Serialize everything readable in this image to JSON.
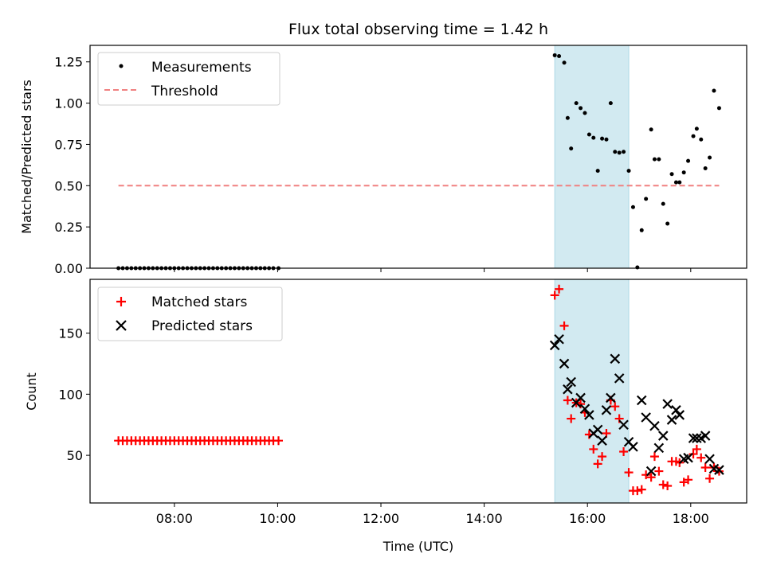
{
  "chart_data": [
    {
      "type": "scatter",
      "title": "Flux total observing time = 1.42 h",
      "xlabel": "",
      "ylabel": "Matched/Predicted stars",
      "xlim": [
        "06:22",
        "19:05"
      ],
      "ylim": [
        0,
        1.35
      ],
      "y_ticks": [
        "0.00",
        "0.25",
        "0.50",
        "0.75",
        "1.00",
        "1.25"
      ],
      "x_ticks": [
        "08:00",
        "10:00",
        "12:00",
        "14:00",
        "16:00",
        "18:00"
      ],
      "shaded_span": [
        "15:22",
        "16:48"
      ],
      "shaded_color": "#add8e6",
      "legend_position": "upper left",
      "legend": [
        "Measurements",
        "Threshold"
      ],
      "threshold": {
        "value": 0.5,
        "x_start": "06:55",
        "x_end": "18:33",
        "color": "#f08080"
      },
      "series": [
        {
          "name": "Measurements",
          "color": "#000000",
          "points": [
            [
              "06:55",
              0
            ],
            [
              "07:00",
              0
            ],
            [
              "07:05",
              0
            ],
            [
              "07:10",
              0
            ],
            [
              "07:15",
              0
            ],
            [
              "07:20",
              0
            ],
            [
              "07:25",
              0
            ],
            [
              "07:30",
              0
            ],
            [
              "07:35",
              0
            ],
            [
              "07:40",
              0
            ],
            [
              "07:45",
              0
            ],
            [
              "07:50",
              0
            ],
            [
              "07:55",
              0
            ],
            [
              "08:00",
              0
            ],
            [
              "08:05",
              0
            ],
            [
              "08:10",
              0
            ],
            [
              "08:15",
              0
            ],
            [
              "08:20",
              0
            ],
            [
              "08:25",
              0
            ],
            [
              "08:30",
              0
            ],
            [
              "08:35",
              0
            ],
            [
              "08:40",
              0
            ],
            [
              "08:45",
              0
            ],
            [
              "08:50",
              0
            ],
            [
              "08:55",
              0
            ],
            [
              "09:00",
              0
            ],
            [
              "09:05",
              0
            ],
            [
              "09:10",
              0
            ],
            [
              "09:15",
              0
            ],
            [
              "09:20",
              0
            ],
            [
              "09:25",
              0
            ],
            [
              "09:30",
              0
            ],
            [
              "09:35",
              0
            ],
            [
              "09:40",
              0
            ],
            [
              "09:45",
              0
            ],
            [
              "09:50",
              0
            ],
            [
              "09:55",
              0
            ],
            [
              "10:01",
              0
            ],
            [
              "15:22",
              1.29
            ],
            [
              "15:27",
              1.285
            ],
            [
              "15:33",
              1.245
            ],
            [
              "15:37",
              0.91
            ],
            [
              "15:41",
              0.725
            ],
            [
              "15:47",
              1.0
            ],
            [
              "15:52",
              0.97
            ],
            [
              "15:57",
              0.94
            ],
            [
              "16:02",
              0.81
            ],
            [
              "16:07",
              0.79
            ],
            [
              "16:12",
              0.59
            ],
            [
              "16:17",
              0.785
            ],
            [
              "16:22",
              0.78
            ],
            [
              "16:27",
              1.0
            ],
            [
              "16:32",
              0.705
            ],
            [
              "16:37",
              0.7
            ],
            [
              "16:42",
              0.705
            ],
            [
              "16:48",
              0.59
            ],
            [
              "16:53",
              0.37
            ],
            [
              "16:58",
              0.005
            ],
            [
              "17:03",
              0.23
            ],
            [
              "17:08",
              0.42
            ],
            [
              "17:14",
              0.84
            ],
            [
              "17:18",
              0.66
            ],
            [
              "17:23",
              0.66
            ],
            [
              "17:28",
              0.39
            ],
            [
              "17:33",
              0.27
            ],
            [
              "17:38",
              0.57
            ],
            [
              "17:43",
              0.52
            ],
            [
              "17:47",
              0.52
            ],
            [
              "17:52",
              0.58
            ],
            [
              "17:57",
              0.65
            ],
            [
              "18:03",
              0.8
            ],
            [
              "18:07",
              0.845
            ],
            [
              "18:12",
              0.78
            ],
            [
              "18:17",
              0.605
            ],
            [
              "18:22",
              0.67
            ],
            [
              "18:27",
              1.075
            ],
            [
              "18:33",
              0.97
            ]
          ]
        }
      ]
    },
    {
      "type": "scatter",
      "title": "",
      "xlabel": "Time (UTC)",
      "ylabel": "Count",
      "xlim": [
        "06:22",
        "19:05"
      ],
      "ylim": [
        11,
        194
      ],
      "y_ticks": [
        "50",
        "100",
        "150"
      ],
      "x_ticks": [
        "08:00",
        "10:00",
        "12:00",
        "14:00",
        "16:00",
        "18:00"
      ],
      "shaded_span": [
        "15:22",
        "16:48"
      ],
      "shaded_color": "#add8e6",
      "legend_position": "upper left",
      "legend": [
        "Matched stars",
        "Predicted stars"
      ],
      "series": [
        {
          "name": "Matched stars",
          "color": "#ff0000",
          "marker": "plus",
          "points": [
            [
              "06:55",
              62
            ],
            [
              "07:00",
              62
            ],
            [
              "07:05",
              62
            ],
            [
              "07:10",
              62
            ],
            [
              "07:15",
              62
            ],
            [
              "07:20",
              62
            ],
            [
              "07:25",
              62
            ],
            [
              "07:30",
              62
            ],
            [
              "07:35",
              62
            ],
            [
              "07:40",
              62
            ],
            [
              "07:45",
              62
            ],
            [
              "07:50",
              62
            ],
            [
              "07:55",
              62
            ],
            [
              "08:00",
              62
            ],
            [
              "08:05",
              62
            ],
            [
              "08:10",
              62
            ],
            [
              "08:15",
              62
            ],
            [
              "08:20",
              62
            ],
            [
              "08:25",
              62
            ],
            [
              "08:30",
              62
            ],
            [
              "08:35",
              62
            ],
            [
              "08:40",
              62
            ],
            [
              "08:45",
              62
            ],
            [
              "08:50",
              62
            ],
            [
              "08:55",
              62
            ],
            [
              "09:00",
              62
            ],
            [
              "09:05",
              62
            ],
            [
              "09:10",
              62
            ],
            [
              "09:15",
              62
            ],
            [
              "09:20",
              62
            ],
            [
              "09:25",
              62
            ],
            [
              "09:30",
              62
            ],
            [
              "09:35",
              62
            ],
            [
              "09:40",
              62
            ],
            [
              "09:45",
              62
            ],
            [
              "09:50",
              62
            ],
            [
              "09:55",
              62
            ],
            [
              "10:01",
              62
            ],
            [
              "15:22",
              181
            ],
            [
              "15:27",
              186
            ],
            [
              "15:33",
              156
            ],
            [
              "15:37",
              95
            ],
            [
              "15:41",
              80
            ],
            [
              "15:47",
              93
            ],
            [
              "15:52",
              92
            ],
            [
              "15:57",
              85
            ],
            [
              "16:02",
              67
            ],
            [
              "16:07",
              55
            ],
            [
              "16:12",
              43
            ],
            [
              "16:17",
              49
            ],
            [
              "16:22",
              68
            ],
            [
              "16:27",
              95
            ],
            [
              "16:32",
              90
            ],
            [
              "16:37",
              80
            ],
            [
              "16:42",
              53
            ],
            [
              "16:48",
              36
            ],
            [
              "16:53",
              21
            ],
            [
              "16:58",
              21
            ],
            [
              "17:03",
              22
            ],
            [
              "17:08",
              34
            ],
            [
              "17:14",
              32
            ],
            [
              "17:18",
              49
            ],
            [
              "17:23",
              37
            ],
            [
              "17:28",
              26
            ],
            [
              "17:33",
              25
            ],
            [
              "17:38",
              45
            ],
            [
              "17:43",
              45
            ],
            [
              "17:47",
              44
            ],
            [
              "17:52",
              28
            ],
            [
              "17:57",
              30
            ],
            [
              "18:03",
              51
            ],
            [
              "18:07",
              55
            ],
            [
              "18:12",
              48
            ],
            [
              "18:17",
              40
            ],
            [
              "18:22",
              31
            ],
            [
              "18:27",
              40
            ],
            [
              "18:33",
              37
            ]
          ]
        },
        {
          "name": "Predicted stars",
          "color": "#000000",
          "marker": "x",
          "points": [
            [
              "15:22",
              140
            ],
            [
              "15:27",
              145
            ],
            [
              "15:33",
              125
            ],
            [
              "15:37",
              104
            ],
            [
              "15:41",
              110
            ],
            [
              "15:47",
              93
            ],
            [
              "15:52",
              97
            ],
            [
              "15:57",
              88
            ],
            [
              "16:02",
              83
            ],
            [
              "16:07",
              68
            ],
            [
              "16:12",
              71
            ],
            [
              "16:17",
              62
            ],
            [
              "16:22",
              87
            ],
            [
              "16:27",
              97
            ],
            [
              "16:32",
              129
            ],
            [
              "16:37",
              113
            ],
            [
              "16:42",
              75
            ],
            [
              "16:48",
              61
            ],
            [
              "16:53",
              57
            ],
            [
              "17:03",
              95
            ],
            [
              "17:08",
              81
            ],
            [
              "17:14",
              37
            ],
            [
              "17:18",
              74
            ],
            [
              "17:23",
              56
            ],
            [
              "17:28",
              66
            ],
            [
              "17:33",
              92
            ],
            [
              "17:38",
              79
            ],
            [
              "17:43",
              87
            ],
            [
              "17:47",
              83
            ],
            [
              "17:52",
              47
            ],
            [
              "17:57",
              48
            ],
            [
              "18:03",
              64
            ],
            [
              "18:07",
              64
            ],
            [
              "18:12",
              64
            ],
            [
              "18:17",
              66
            ],
            [
              "18:22",
              47
            ],
            [
              "18:27",
              39
            ],
            [
              "18:33",
              38
            ]
          ]
        }
      ]
    }
  ]
}
